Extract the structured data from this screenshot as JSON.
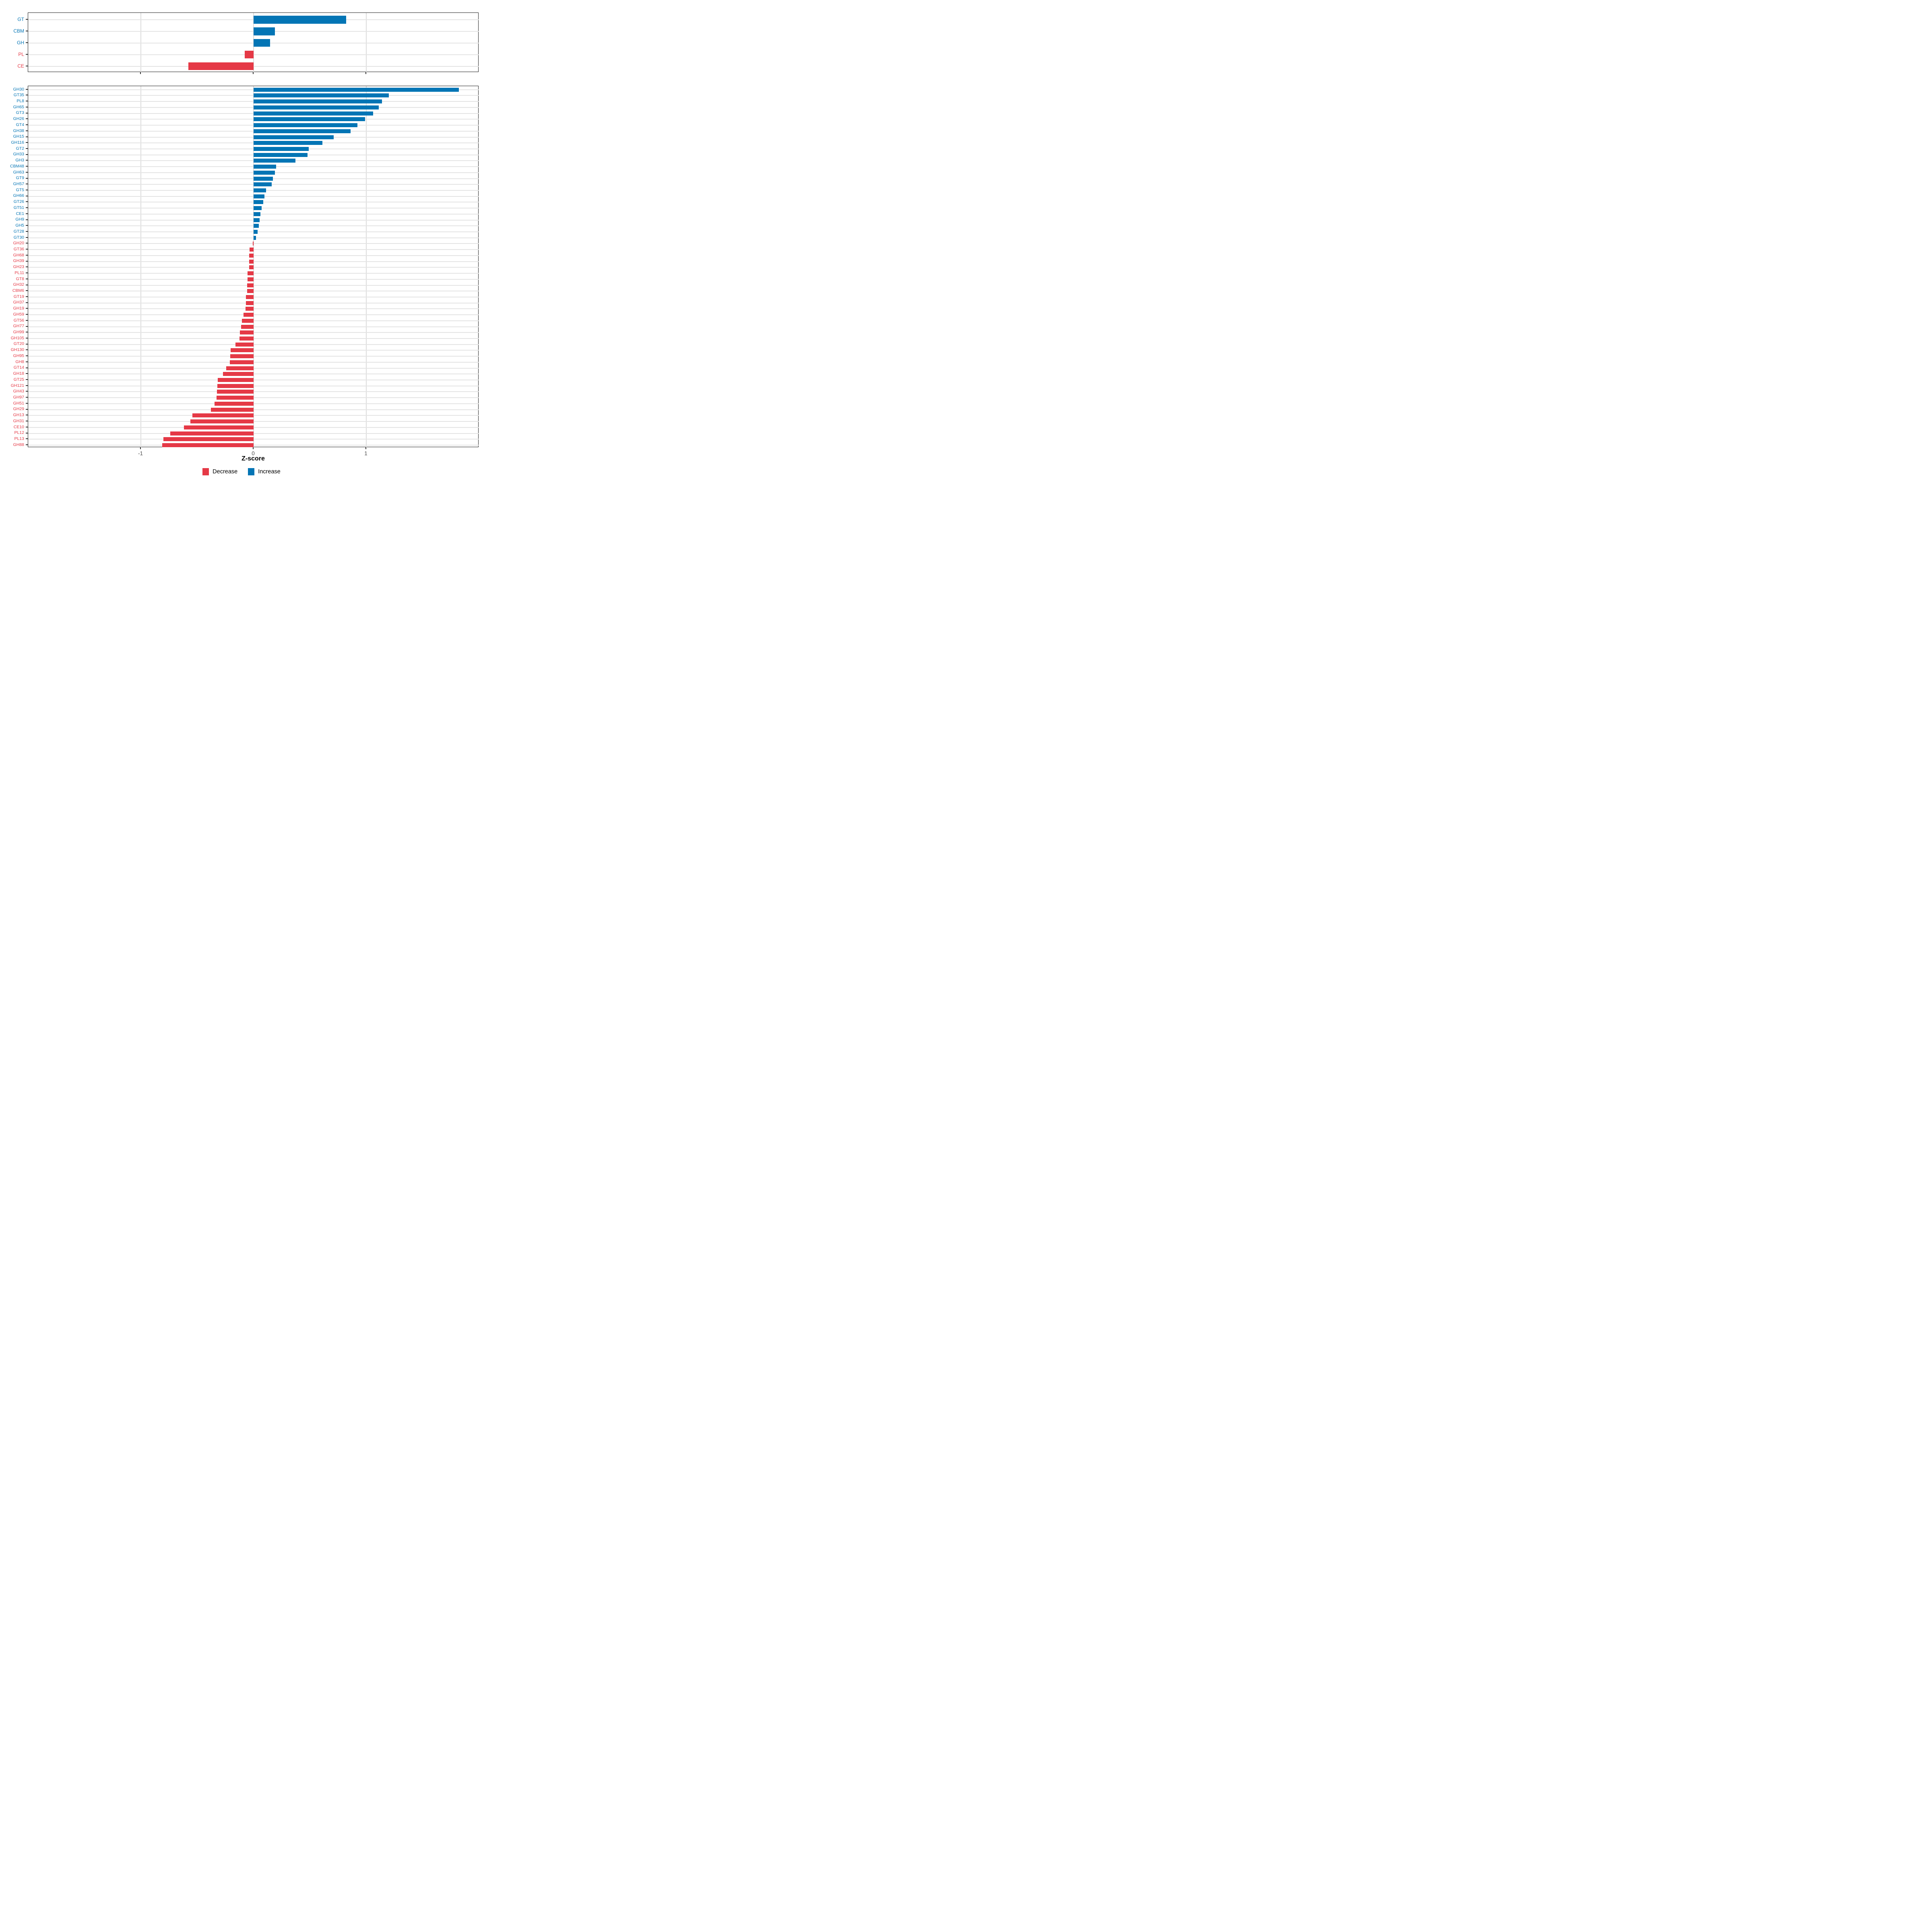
{
  "axis": {
    "title": "Z-score",
    "ticks": [
      -1,
      0,
      1
    ],
    "tick_labels": [
      "-1",
      "0",
      "1"
    ],
    "xlim": [
      -2,
      2
    ],
    "grid": "major-only"
  },
  "colors": {
    "increase": "#0375B5",
    "decrease": "#E53946",
    "tick_text": "#4d4d4d",
    "gridline": "#e4e4e4",
    "panel_border": "#1f1f1f"
  },
  "legend": {
    "items": [
      {
        "label": "Decrease",
        "color": "#E53946"
      },
      {
        "label": "Increase",
        "color": "#0375B5"
      }
    ],
    "position": "bottom"
  },
  "chart_data": [
    {
      "type": "bar",
      "orientation": "horizontal",
      "panel": "top",
      "title": "",
      "xlabel": "Z-score",
      "ylabel": "",
      "xlim": [
        -2,
        2
      ],
      "categories": [
        "GT",
        "CBM",
        "GH",
        "PL",
        "CE"
      ],
      "values": [
        0.82,
        0.19,
        0.145,
        -0.08,
        -0.58
      ],
      "series_labels": [
        "Increase",
        "Increase",
        "Increase",
        "Decrease",
        "Decrease"
      ]
    },
    {
      "type": "bar",
      "orientation": "horizontal",
      "panel": "bottom",
      "title": "",
      "xlabel": "Z-score",
      "ylabel": "",
      "xlim": [
        -2,
        2
      ],
      "categories": [
        "GH30",
        "GT35",
        "PL8",
        "GH65",
        "GT3",
        "GH26",
        "GT4",
        "GH38",
        "GH15",
        "GH116",
        "GT2",
        "GH33",
        "GH3",
        "CBM48",
        "GH63",
        "GT9",
        "GH57",
        "GT5",
        "GH66",
        "GT26",
        "GT51",
        "CE1",
        "GH9",
        "GH5",
        "GT28",
        "GT30",
        "GH20",
        "GT36",
        "GH68",
        "GH39",
        "GH23",
        "PL11",
        "GT8",
        "GH32",
        "CBM6",
        "GT19",
        "GH37",
        "GH19",
        "GH59",
        "GT56",
        "GH77",
        "GH99",
        "GH105",
        "GT20",
        "GH130",
        "GH95",
        "GH8",
        "GT14",
        "GH18",
        "GT25",
        "GH121",
        "GH43",
        "GH97",
        "GH51",
        "GH29",
        "GH13",
        "GH31",
        "CE10",
        "PL12",
        "PL13",
        "GH88"
      ],
      "values": [
        1.82,
        1.2,
        1.14,
        1.11,
        1.06,
        0.99,
        0.92,
        0.86,
        0.71,
        0.61,
        0.49,
        0.48,
        0.37,
        0.2,
        0.19,
        0.17,
        0.16,
        0.11,
        0.095,
        0.085,
        0.07,
        0.06,
        0.052,
        0.048,
        0.037,
        0.023,
        -0.008,
        -0.034,
        -0.038,
        -0.04,
        -0.041,
        -0.053,
        -0.055,
        -0.056,
        -0.057,
        -0.068,
        -0.069,
        -0.07,
        -0.089,
        -0.105,
        -0.11,
        -0.12,
        -0.125,
        -0.16,
        -0.202,
        -0.208,
        -0.212,
        -0.243,
        -0.273,
        -0.318,
        -0.322,
        -0.326,
        -0.328,
        -0.347,
        -0.38,
        -0.544,
        -0.561,
        -0.619,
        -0.74,
        -0.8,
        -0.81
      ],
      "series_labels_rule": "positive = Increase (blue), negative = Decrease (red)"
    }
  ]
}
